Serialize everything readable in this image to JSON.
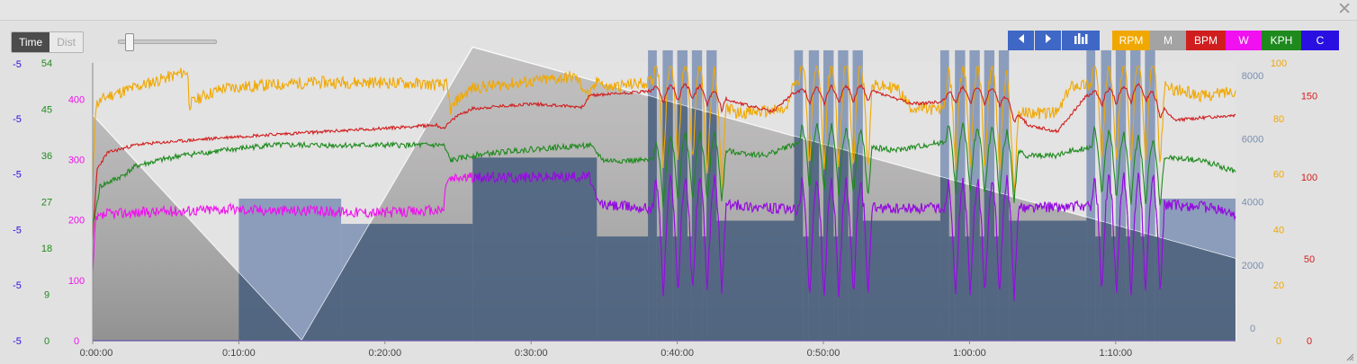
{
  "window": {
    "close_icon": "close-x-icon"
  },
  "mode_toggle": {
    "time_label": "Time",
    "dist_label": "Dist",
    "active": "Time"
  },
  "zoom_slider": {
    "value": 0.07
  },
  "nav": {
    "prev_icon": "triangle-left-icon",
    "next_icon": "triangle-right-icon",
    "chart_icon": "bar-chart-icon"
  },
  "series_buttons": [
    {
      "key": "rpm",
      "label": "RPM",
      "color": "#f0a800"
    },
    {
      "key": "m",
      "label": "M",
      "color": "#a3a3a3"
    },
    {
      "key": "bpm",
      "label": "BPM",
      "color": "#d01e1e"
    },
    {
      "key": "w",
      "label": "W",
      "color": "#f010f0"
    },
    {
      "key": "kph",
      "label": "KPH",
      "color": "#1e8a1e"
    },
    {
      "key": "c",
      "label": "C",
      "color": "#2a10e0"
    }
  ],
  "colors": {
    "cadence": "#f0a800",
    "heart_rate": "#d01e1e",
    "power": "#f010f0",
    "power_dark": "#7a10d8",
    "speed": "#1e8a1e",
    "temperature": "#2a10e0",
    "elevation_fill": "#b3b1b1",
    "intervals_fill": "#6a82ad",
    "intervals_dark": "#485f7e",
    "altitude_axis": "#7a8fb0"
  },
  "chart_data": {
    "type": "line",
    "x": {
      "unit": "time",
      "ticks": [
        "0:00:00",
        "0:10:00",
        "0:20:00",
        "0:30:00",
        "0:40:00",
        "0:50:00",
        "1:00:00",
        "1:10:00"
      ],
      "range_min": [
        0,
        78.2
      ]
    },
    "axes": {
      "temperature": {
        "ticks": [
          "-5",
          "-5",
          "-5",
          "-5",
          "-5",
          "-5"
        ],
        "color": "#2a10e0",
        "side": "left"
      },
      "speed": {
        "ticks": [
          "0",
          "9",
          "18",
          "27",
          "36",
          "45",
          "54"
        ],
        "range": [
          0,
          54
        ],
        "color": "#1e8a1e",
        "side": "left"
      },
      "power": {
        "ticks": [
          "0",
          "100",
          "200",
          "300",
          "400"
        ],
        "range": [
          0,
          460
        ],
        "color": "#f010f0",
        "side": "left"
      },
      "altitude": {
        "ticks": [
          "0",
          "2000",
          "4000",
          "6000",
          "8000"
        ],
        "range": [
          0,
          8800
        ],
        "color": "#7a8fb0",
        "side": "right"
      },
      "cadence": {
        "ticks": [
          "0",
          "20",
          "40",
          "60",
          "80",
          "100"
        ],
        "range": [
          0,
          100
        ],
        "color": "#f0a800",
        "side": "right"
      },
      "heart_rate": {
        "ticks": [
          "0",
          "50",
          "100",
          "150"
        ],
        "range": [
          0,
          170
        ],
        "color": "#d01e1e",
        "side": "right"
      }
    },
    "series": [
      {
        "name": "RPM",
        "axis": "cadence",
        "keyframes": [
          [
            0,
            55
          ],
          [
            0.2,
            85
          ],
          [
            1,
            88
          ],
          [
            4,
            93
          ],
          [
            6.5,
            97
          ],
          [
            6.6,
            85
          ],
          [
            7.5,
            88
          ],
          [
            9,
            91
          ],
          [
            12,
            92
          ],
          [
            15,
            93
          ],
          [
            20,
            93
          ],
          [
            24.2,
            92
          ],
          [
            24.5,
            83
          ],
          [
            25,
            87
          ],
          [
            26,
            91
          ],
          [
            33,
            95
          ],
          [
            34,
            88
          ],
          [
            34.7,
            95
          ],
          [
            35,
            91
          ],
          [
            38,
            93
          ],
          [
            41,
            93
          ],
          [
            44,
            82
          ],
          [
            47.5,
            83
          ],
          [
            48,
            93
          ],
          [
            53,
            92
          ],
          [
            55,
            91
          ],
          [
            56,
            84
          ],
          [
            58,
            83
          ],
          [
            59,
            92
          ],
          [
            62,
            91
          ],
          [
            63,
            82
          ],
          [
            66,
            82
          ],
          [
            67,
            92
          ],
          [
            72,
            93
          ],
          [
            76,
            88
          ],
          [
            78,
            90
          ]
        ]
      },
      {
        "name": "BPM",
        "axis": "heart_rate",
        "keyframes": [
          [
            0,
            62
          ],
          [
            0.3,
            105
          ],
          [
            1,
            115
          ],
          [
            3,
            120
          ],
          [
            10,
            125
          ],
          [
            20,
            130
          ],
          [
            23.5,
            132
          ],
          [
            24,
            130
          ],
          [
            25,
            138
          ],
          [
            26,
            142
          ],
          [
            30,
            145
          ],
          [
            33.5,
            143
          ],
          [
            34,
            150
          ],
          [
            37,
            152
          ],
          [
            41,
            155
          ],
          [
            44,
            146
          ],
          [
            46.5,
            140
          ],
          [
            48,
            152
          ],
          [
            53,
            154
          ],
          [
            56,
            145
          ],
          [
            58,
            146
          ],
          [
            59,
            153
          ],
          [
            62,
            152
          ],
          [
            64,
            132
          ],
          [
            66,
            128
          ],
          [
            68,
            150
          ],
          [
            72,
            155
          ],
          [
            74,
            135
          ],
          [
            78,
            138
          ]
        ]
      },
      {
        "name": "W",
        "axis": "power",
        "keyframes": [
          [
            0,
            110
          ],
          [
            0.2,
            200
          ],
          [
            1,
            210
          ],
          [
            9,
            218
          ],
          [
            20,
            212
          ],
          [
            24,
            216
          ],
          [
            24.2,
            265
          ],
          [
            25,
            270
          ],
          [
            34,
            272
          ],
          [
            34.5,
            230
          ],
          [
            35,
            225
          ],
          [
            38,
            220
          ],
          [
            41,
            225
          ],
          [
            44,
            225
          ],
          [
            47,
            218
          ],
          [
            50,
            215
          ],
          [
            53,
            220
          ],
          [
            55,
            218
          ],
          [
            58,
            220
          ],
          [
            60,
            218
          ],
          [
            63,
            220
          ],
          [
            67,
            222
          ],
          [
            70,
            225
          ],
          [
            73,
            225
          ],
          [
            76,
            222
          ],
          [
            78,
            210
          ]
        ]
      },
      {
        "name": "KPH",
        "axis": "speed",
        "keyframes": [
          [
            0,
            22
          ],
          [
            0.5,
            30
          ],
          [
            2,
            32
          ],
          [
            3,
            34
          ],
          [
            6,
            36
          ],
          [
            9,
            37
          ],
          [
            12,
            38
          ],
          [
            16,
            38
          ],
          [
            20,
            38
          ],
          [
            24,
            38
          ],
          [
            24.5,
            35
          ],
          [
            26,
            36
          ],
          [
            29,
            37
          ],
          [
            34,
            38
          ],
          [
            35,
            35
          ],
          [
            38,
            35
          ],
          [
            40,
            37
          ],
          [
            43,
            37
          ],
          [
            46,
            36
          ],
          [
            47.8,
            38
          ],
          [
            49,
            39
          ],
          [
            55,
            37
          ],
          [
            57,
            38
          ],
          [
            59,
            39
          ],
          [
            62,
            38
          ],
          [
            64,
            36
          ],
          [
            66,
            36
          ],
          [
            67,
            37
          ],
          [
            69,
            38
          ],
          [
            72,
            36
          ],
          [
            76,
            35
          ],
          [
            78,
            33
          ]
        ]
      },
      {
        "name": "C",
        "axis": "temperature",
        "keyframes": [
          [
            0,
            0
          ],
          [
            78.2,
            0
          ]
        ]
      }
    ],
    "elevation": {
      "axis": "altitude",
      "points": [
        [
          0,
          7150
        ],
        [
          14.3,
          0
        ],
        [
          26,
          9300
        ],
        [
          78.2,
          2600
        ]
      ]
    },
    "intervals": [
      [
        10,
        17,
        4500
      ],
      [
        17,
        26,
        3700
      ],
      [
        26,
        34.5,
        5800
      ],
      [
        34.5,
        38,
        3300
      ],
      [
        38,
        38.6,
        9200
      ],
      [
        38.6,
        39,
        3300
      ],
      [
        39,
        39.7,
        9200
      ],
      [
        39.7,
        40,
        3300
      ],
      [
        40,
        40.7,
        9200
      ],
      [
        40.7,
        41,
        3300
      ],
      [
        41,
        41.7,
        9200
      ],
      [
        41.7,
        42,
        3300
      ],
      [
        42,
        42.7,
        9200
      ],
      [
        42.7,
        48,
        3800
      ],
      [
        48,
        48.6,
        9200
      ],
      [
        48.6,
        49,
        3300
      ],
      [
        49,
        49.7,
        9200
      ],
      [
        49.7,
        50,
        3300
      ],
      [
        50,
        50.7,
        9200
      ],
      [
        50.7,
        51,
        3300
      ],
      [
        51,
        51.7,
        9200
      ],
      [
        51.7,
        52,
        3300
      ],
      [
        52,
        52.7,
        9200
      ],
      [
        52.7,
        58,
        3800
      ],
      [
        58,
        58.6,
        9200
      ],
      [
        58.6,
        59,
        3300
      ],
      [
        59,
        59.7,
        9200
      ],
      [
        59.7,
        60,
        3300
      ],
      [
        60,
        60.7,
        9200
      ],
      [
        60.7,
        61,
        3300
      ],
      [
        61,
        61.7,
        9200
      ],
      [
        61.7,
        62,
        3300
      ],
      [
        62,
        62.7,
        9200
      ],
      [
        62.7,
        68,
        3800
      ],
      [
        68,
        68.6,
        9200
      ],
      [
        68.6,
        69,
        3300
      ],
      [
        69,
        69.7,
        9200
      ],
      [
        69.7,
        70,
        3300
      ],
      [
        70,
        70.7,
        9200
      ],
      [
        70.7,
        71,
        3300
      ],
      [
        71,
        71.7,
        9200
      ],
      [
        71.7,
        72,
        3300
      ],
      [
        72,
        72.7,
        9200
      ],
      [
        72.7,
        73,
        3300
      ],
      [
        73,
        78.2,
        4500
      ]
    ],
    "intervals_dark_zone": [
      26,
      78.2
    ],
    "sprints": [
      {
        "start": 38.4,
        "count": 5,
        "period": 1.0
      },
      {
        "start": 48.4,
        "count": 5,
        "period": 1.0
      },
      {
        "start": 58.4,
        "count": 5,
        "period": 1.0
      },
      {
        "start": 68.4,
        "count": 5,
        "period": 1.0
      }
    ]
  }
}
